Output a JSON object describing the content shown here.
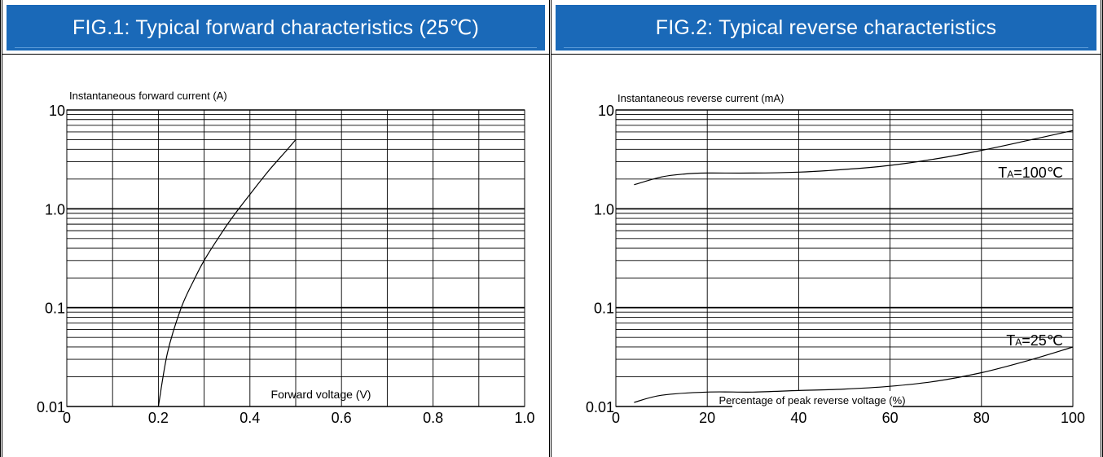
{
  "chart_data": [
    {
      "type": "line",
      "title": "FIG.1: Typical forward characteristics (25℃)",
      "ylabel": "Instantaneous forward current (A)",
      "xlabel": "Forward voltage (V)",
      "xlim": [
        0,
        1.0
      ],
      "ylim": [
        0.01,
        10
      ],
      "yscale": "log",
      "grid": true,
      "x_ticks": [
        "0",
        "0.2",
        "0.4",
        "0.6",
        "0.8",
        "1.0"
      ],
      "y_ticks": [
        "0.01",
        "0.1",
        "1.0",
        "10"
      ],
      "series": [
        {
          "x": [
            0.2,
            0.22,
            0.25,
            0.28,
            0.3,
            0.33,
            0.36,
            0.4,
            0.44,
            0.48,
            0.5
          ],
          "y": [
            0.01,
            0.035,
            0.1,
            0.2,
            0.3,
            0.5,
            0.8,
            1.4,
            2.4,
            3.9,
            5.0
          ]
        }
      ]
    },
    {
      "type": "line",
      "title": "FIG.2: Typical reverse characteristics",
      "ylabel": "Instantaneous reverse current (mA)",
      "xlabel": "Percentage of peak reverse voltage (%)",
      "xlim": [
        0,
        100
      ],
      "ylim": [
        0.01,
        10
      ],
      "yscale": "log",
      "grid": true,
      "x_ticks": [
        "0",
        "20",
        "40",
        "60",
        "80",
        "100"
      ],
      "y_ticks": [
        "0.01",
        "0.1",
        "1.0",
        "10"
      ],
      "series": [
        {
          "name": "TA=100℃",
          "x": [
            4,
            10,
            15,
            20,
            30,
            40,
            50,
            60,
            70,
            80,
            90,
            100
          ],
          "y": [
            1.75,
            2.1,
            2.25,
            2.3,
            2.3,
            2.35,
            2.5,
            2.75,
            3.2,
            3.9,
            4.9,
            6.2
          ]
        },
        {
          "name": "TA=25℃",
          "x": [
            4,
            10,
            20,
            30,
            40,
            50,
            60,
            70,
            80,
            90,
            100
          ],
          "y": [
            0.011,
            0.013,
            0.014,
            0.014,
            0.0145,
            0.015,
            0.016,
            0.018,
            0.022,
            0.029,
            0.04
          ]
        }
      ]
    }
  ]
}
